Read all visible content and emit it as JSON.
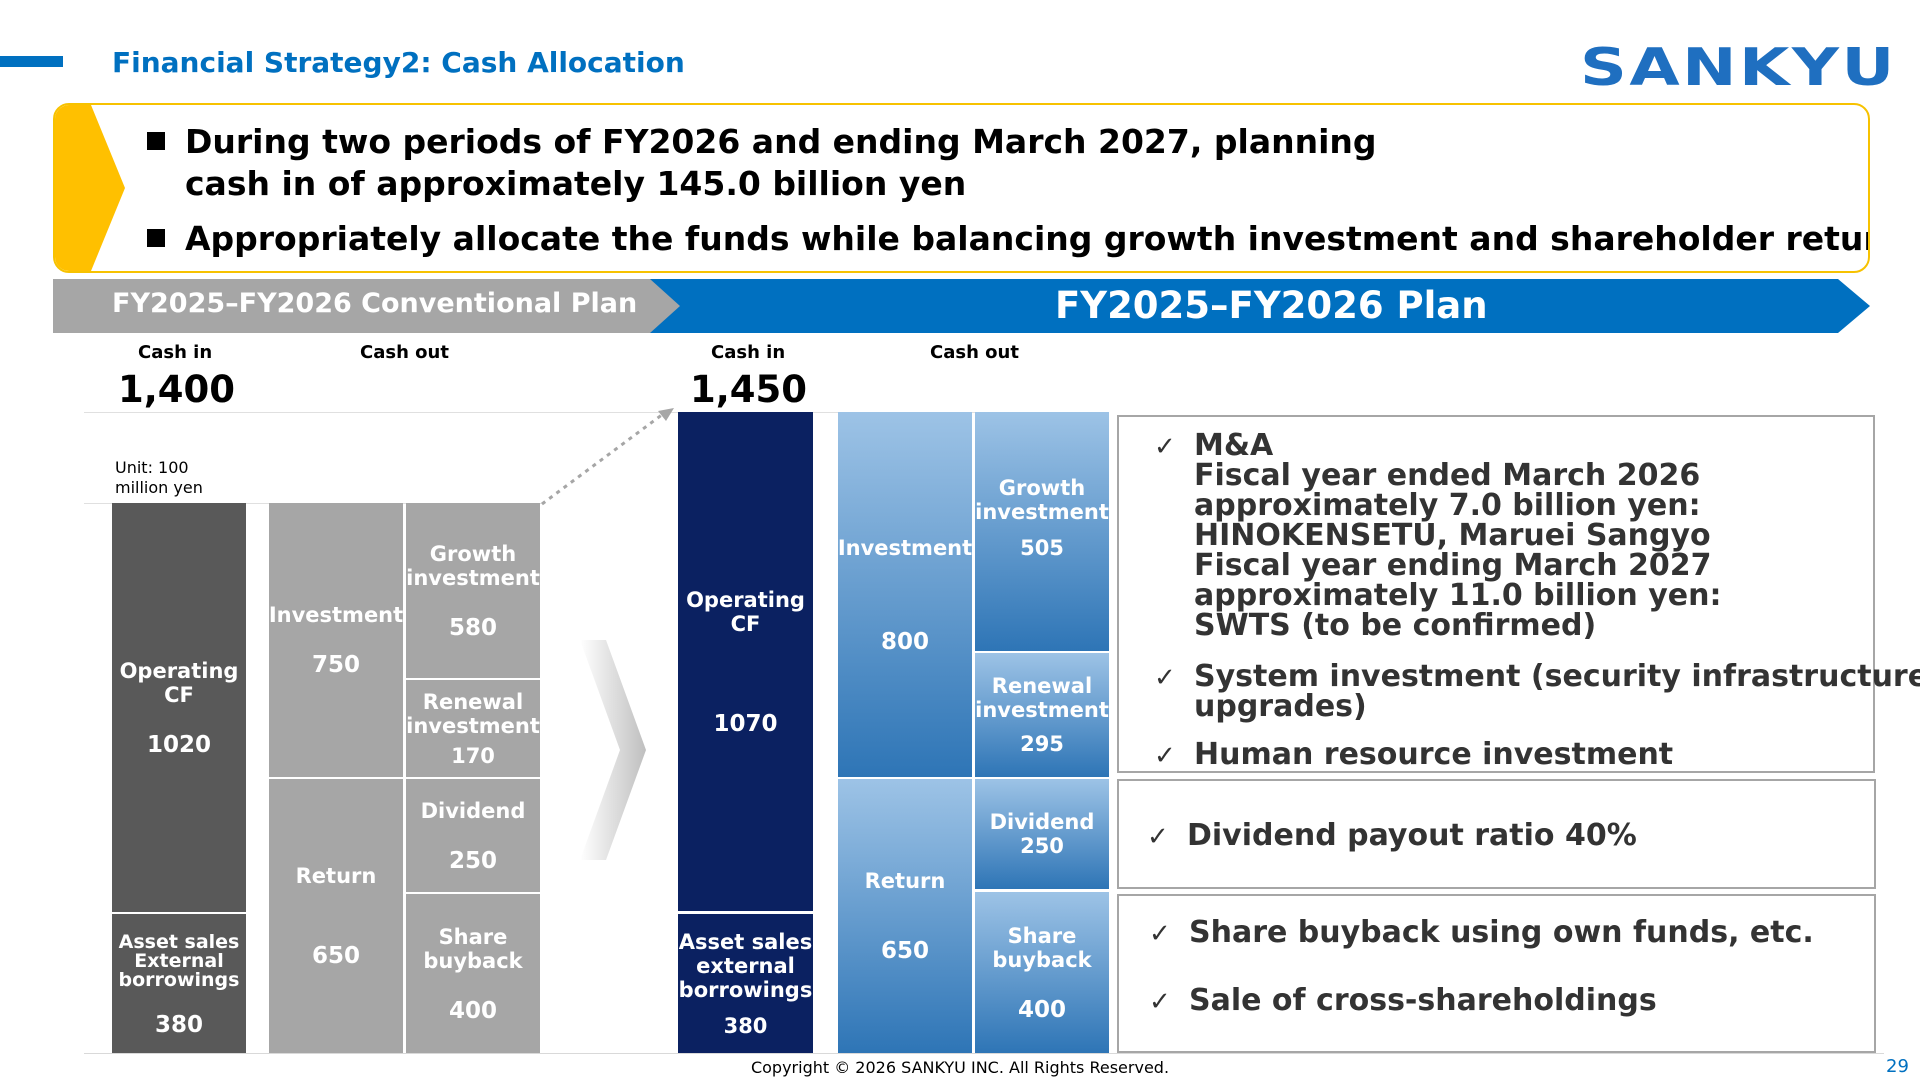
{
  "header": {
    "title": "Financial Strategy2: Cash Allocation",
    "logo_text": "SANKYU"
  },
  "summary": {
    "bullet1_line1": "During two periods of FY2026 and ending March 2027, planning",
    "bullet1_line2": "cash in of approximately 145.0 billion yen",
    "bullet2": "Appropriately allocate the funds while balancing growth investment and shareholder return"
  },
  "banners": {
    "conventional": "FY2025–FY2026 Conventional Plan",
    "plan": "FY2025–FY2026 Plan"
  },
  "chart_data": [
    {
      "type": "bar",
      "title": "FY2025–FY2026 Conventional Plan",
      "unit": "Unit: 100 million yen",
      "cash_in_label": "Cash in",
      "cash_out_label": "Cash out",
      "cash_in_total": "1,400",
      "cash_in": [
        {
          "name": "Operating CF",
          "value": 1020
        },
        {
          "name": "Asset sales External borrowings",
          "value": 380
        }
      ],
      "cash_out_groups": [
        {
          "name": "Investment",
          "value": 750,
          "items": [
            {
              "name": "Growth investment",
              "value": 580
            },
            {
              "name": "Renewal investment",
              "value": 170
            }
          ]
        },
        {
          "name": "Return",
          "value": 650,
          "items": [
            {
              "name": "Dividend",
              "value": 250
            },
            {
              "name": "Share buyback",
              "value": 400
            }
          ]
        }
      ]
    },
    {
      "type": "bar",
      "title": "FY2025–FY2026 Plan",
      "cash_in_label": "Cash in",
      "cash_out_label": "Cash out",
      "cash_in_total": "1,450",
      "cash_in": [
        {
          "name": "Operating CF",
          "value": 1070
        },
        {
          "name": "Asset sales external borrowings",
          "value": 380
        }
      ],
      "cash_out_groups": [
        {
          "name": "Investment",
          "value": 800,
          "items": [
            {
              "name": "Growth investment",
              "value": 505
            },
            {
              "name": "Renewal investment",
              "value": 295
            }
          ]
        },
        {
          "name": "Return",
          "value": 650,
          "items": [
            {
              "name": "Dividend",
              "value": 250
            },
            {
              "name": "Share buyback",
              "value": 400
            }
          ]
        }
      ]
    }
  ],
  "conv_labels": {
    "op_cf_1": "Operating",
    "op_cf_2": "CF",
    "op_cf_val": "1020",
    "asset_1": "Asset sales",
    "asset_2": "External",
    "asset_3": "borrowings",
    "asset_val": "380",
    "investment": "Investment",
    "investment_val": "750",
    "return": "Return",
    "return_val": "650",
    "growth_1": "Growth",
    "growth_2": "investment",
    "growth_val": "580",
    "renewal_1": "Renewal",
    "renewal_2": "investment",
    "renewal_val": "170",
    "dividend": "Dividend",
    "dividend_val": "250",
    "buyback_1": "Share",
    "buyback_2": "buyback",
    "buyback_val": "400"
  },
  "plan_labels": {
    "op_cf_1": "Operating",
    "op_cf_2": "CF",
    "op_cf_val": "1070",
    "asset_1": "Asset sales",
    "asset_2": "external",
    "asset_3": "borrowings",
    "asset_val": "380",
    "investment": "Investment",
    "investment_val": "800",
    "return": "Return",
    "return_val": "650",
    "growth_1": "Growth",
    "growth_2": "investment",
    "growth_val": "505",
    "renewal_1": "Renewal",
    "renewal_2": "investment",
    "renewal_val": "295",
    "dividend": "Dividend",
    "dividend_val": "250",
    "buyback_1": "Share",
    "buyback_2": "buyback",
    "buyback_val": "400"
  },
  "unit_line1": "Unit: 100",
  "unit_line2": "million yen",
  "details": {
    "investment": {
      "ma_title": "M&A",
      "ma_lines": [
        "Fiscal year ended March 2026",
        "approximately 7.0 billion yen:",
        "HINOKENSETU, Maruei Sangyo",
        "Fiscal year ending March 2027",
        "approximately 11.0 billion yen:",
        "SWTS (to be confirmed)"
      ],
      "system_line1": "System investment (security infrastructure",
      "system_line2": "upgrades)",
      "human": "Human resource investment"
    },
    "dividend": "Dividend payout ratio 40%",
    "buyback": "Share buyback using own funds, etc.",
    "cross": "Sale of cross-shareholdings",
    "check_mark": "✓"
  },
  "footer": {
    "copyright": "Copyright © 2026 SANKYU INC. All Rights Reserved.",
    "page": "29"
  },
  "colors": {
    "brand_blue": "#0070c0",
    "accent_yellow": "#f7c200",
    "navy": "#0b2161",
    "grey_dark": "#595959",
    "grey_light": "#a6a6a6"
  }
}
